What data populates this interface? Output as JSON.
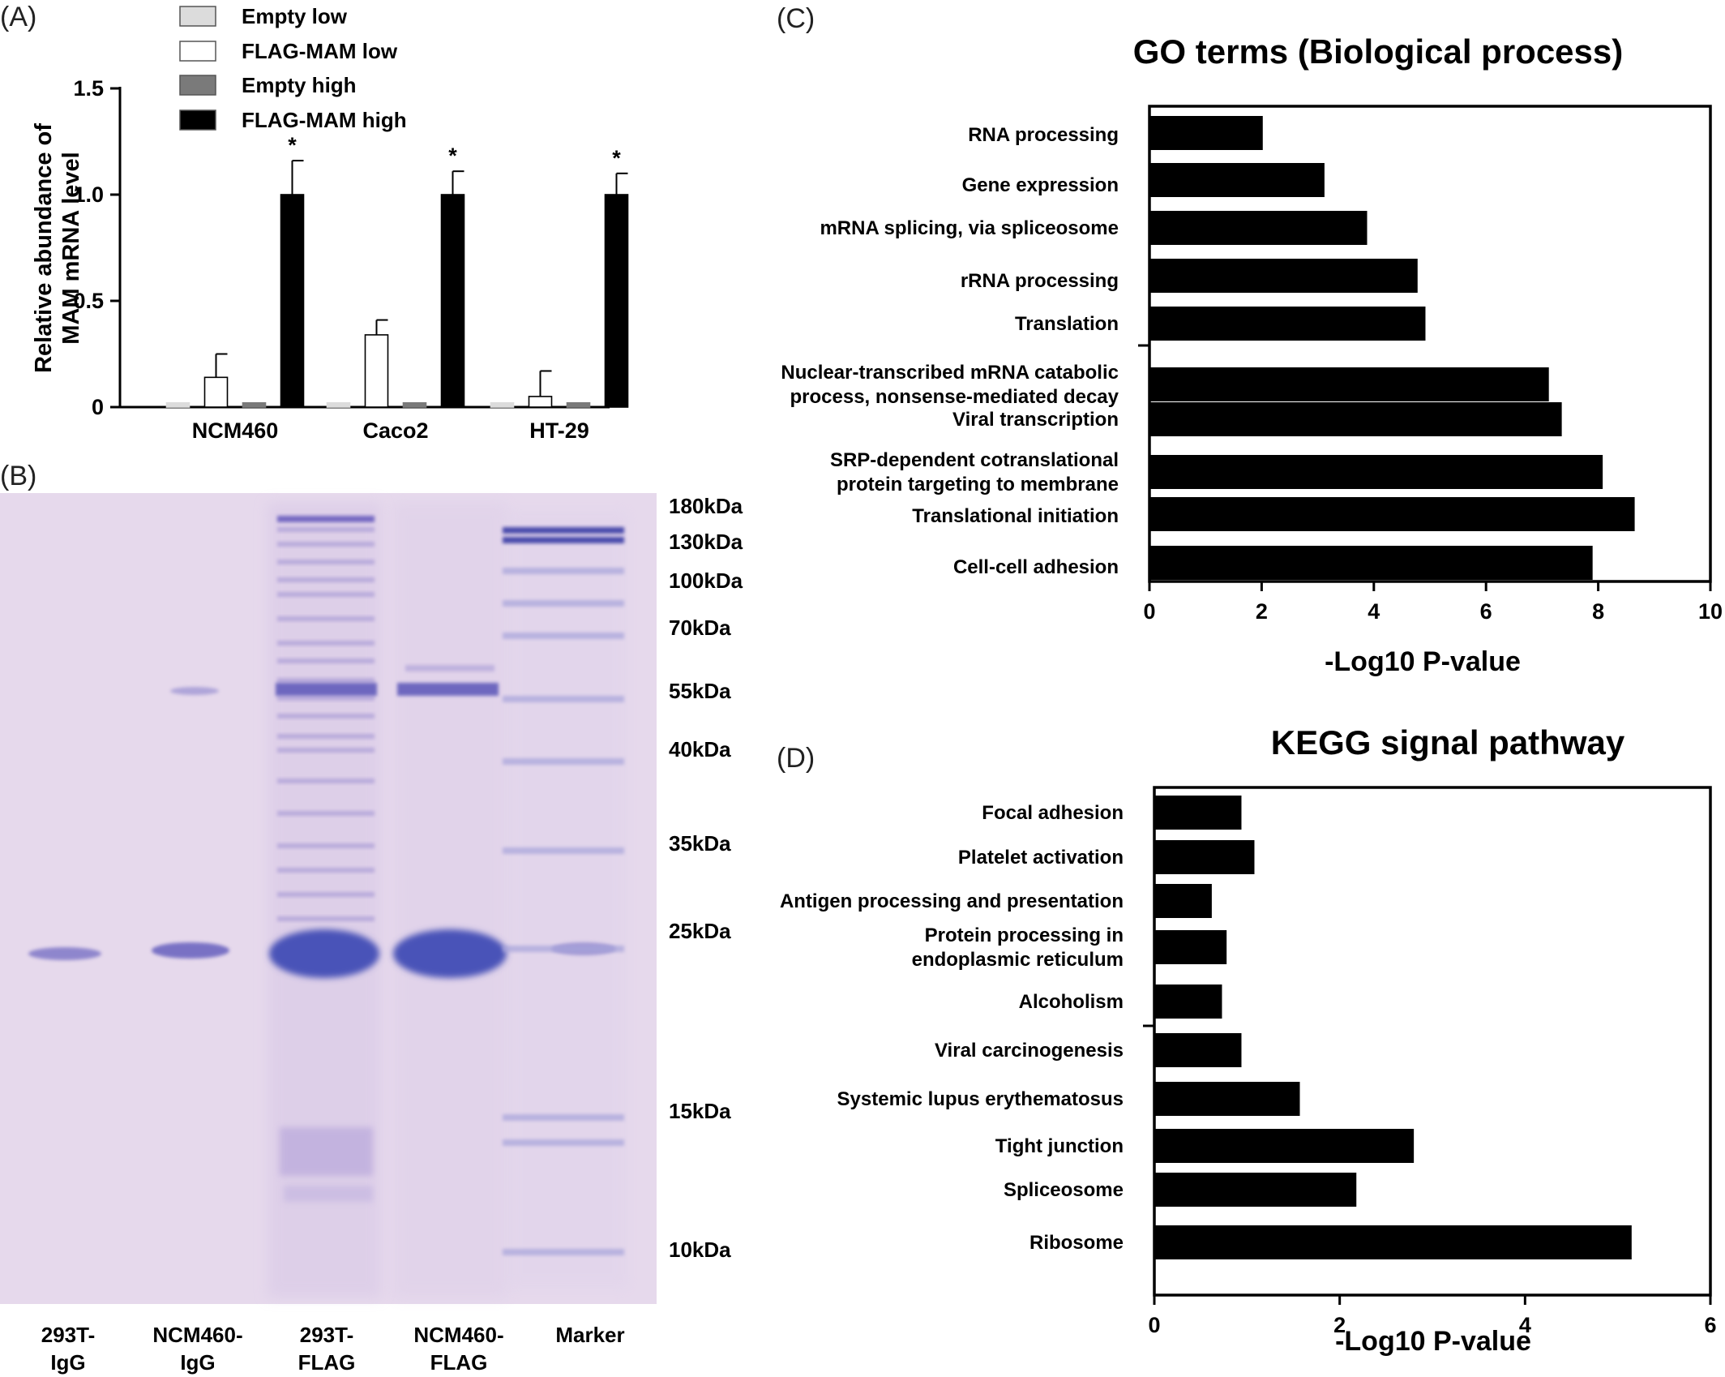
{
  "panels": {
    "A": "(A)",
    "B": "(B)",
    "C": "(C)",
    "D": "(D)"
  },
  "chart_data": [
    {
      "id": "A",
      "type": "bar",
      "title": "",
      "ylabel": "Relative abundance of MAM mRNA  level",
      "ylabel_lines": [
        "Relative abundance of",
        "MAM mRNA  level"
      ],
      "ylim": [
        0,
        1.5
      ],
      "yticks": [
        "0",
        "0.5",
        "1.0",
        "1.5"
      ],
      "categories": [
        "NCM460",
        "Caco2",
        "HT-29"
      ],
      "legend_position": "top",
      "series": [
        {
          "name": "Empty low",
          "values": [
            0.02,
            0.02,
            0.02
          ],
          "errors": [
            0,
            0,
            0
          ],
          "color": "#dcdcdc"
        },
        {
          "name": "FLAG-MAM low",
          "values": [
            0.14,
            0.34,
            0.05
          ],
          "errors": [
            0.11,
            0.07,
            0.12
          ],
          "color": "#ffffff"
        },
        {
          "name": "Empty high",
          "values": [
            0.02,
            0.02,
            0.02
          ],
          "errors": [
            0,
            0,
            0
          ],
          "color": "#7a7a7a"
        },
        {
          "name": "FLAG-MAM high",
          "values": [
            1.0,
            1.0,
            1.0
          ],
          "errors": [
            0.16,
            0.11,
            0.1
          ],
          "color": "#000000"
        }
      ],
      "annotations": [
        "*",
        "*",
        "*"
      ]
    },
    {
      "id": "C",
      "type": "bar",
      "orientation": "horizontal",
      "title": "GO terms (Biological process)",
      "xlabel": "-Log10 P-value",
      "xlim": [
        0,
        10
      ],
      "xticks": [
        "0",
        "2",
        "4",
        "6",
        "8",
        "10"
      ],
      "categories": [
        [
          "RNA processing"
        ],
        [
          "Gene expression"
        ],
        [
          "mRNA splicing, via spliceosome"
        ],
        [
          "rRNA processing"
        ],
        [
          "Translation"
        ],
        [
          "Nuclear-transcribed mRNA catabolic",
          "process, nonsense-mediated decay"
        ],
        [
          "Viral transcription"
        ],
        [
          "SRP-dependent cotranslational",
          "protein targeting to membrane"
        ],
        [
          "Translational initiation"
        ],
        [
          "Cell-cell adhesion"
        ]
      ],
      "values": [
        2.02,
        3.12,
        3.88,
        4.78,
        4.92,
        7.12,
        7.35,
        8.08,
        8.65,
        7.9
      ],
      "color": "#000000"
    },
    {
      "id": "D",
      "type": "bar",
      "orientation": "horizontal",
      "title": "KEGG signal pathway",
      "xlabel": "-Log10 P-value",
      "xlim": [
        0,
        6
      ],
      "xticks": [
        "0",
        "2",
        "4",
        "6"
      ],
      "categories": [
        [
          "Focal adhesion"
        ],
        [
          "Platelet activation"
        ],
        [
          "Antigen processing and presentation"
        ],
        [
          "Protein processing in",
          "endoplasmic reticulum"
        ],
        [
          "Alcoholism"
        ],
        [
          "Viral carcinogenesis"
        ],
        [
          "Systemic lupus erythematosus"
        ],
        [
          "Tight junction"
        ],
        [
          "Spliceosome"
        ],
        [
          "Ribosome"
        ]
      ],
      "values": [
        0.94,
        1.08,
        0.62,
        0.78,
        0.73,
        0.94,
        1.57,
        2.8,
        2.18,
        5.15
      ],
      "color": "#000000"
    }
  ],
  "gel": {
    "markers": [
      "180kDa",
      "130kDa",
      "100kDa",
      "70kDa",
      "55kDa",
      "40kDa",
      "35kDa",
      "25kDa",
      "15kDa",
      "10kDa"
    ],
    "lanes": [
      [
        "293T-",
        "IgG"
      ],
      [
        "NCM460-",
        "IgG"
      ],
      [
        "293T-",
        "FLAG"
      ],
      [
        "NCM460-",
        "FLAG"
      ],
      [
        "Marker"
      ]
    ],
    "background_color": "#e6d9ec",
    "band_color": "#4a52b8"
  }
}
